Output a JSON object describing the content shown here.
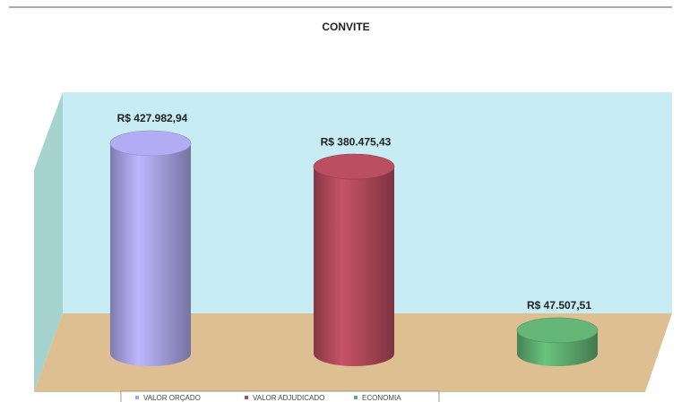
{
  "chart_data": {
    "type": "cylinder-bar",
    "title": "CONVITE",
    "series": [
      {
        "name": "VALOR ORÇADO",
        "color": "#a9a4e8",
        "values": [
          427982.94
        ],
        "value_labels": [
          "R$ 427.982,94"
        ]
      },
      {
        "name": "VALOR ADJUDICADO",
        "color": "#b24a5c",
        "values": [
          380475.43
        ],
        "value_labels": [
          "R$ 380.475,43"
        ]
      },
      {
        "name": "ECONOMIA",
        "color": "#5fae70",
        "values": [
          47507.51
        ],
        "value_labels": [
          "R$ 47.507,51"
        ]
      }
    ]
  }
}
